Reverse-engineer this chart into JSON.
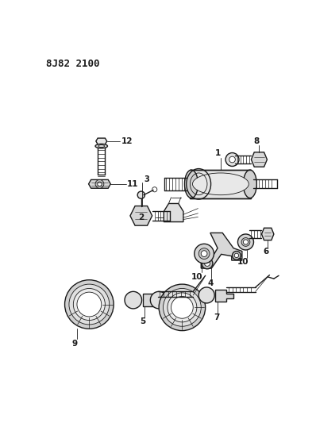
{
  "title": "8J82 2100",
  "background_color": "#ffffff",
  "line_color": "#1a1a1a",
  "figsize": [
    3.98,
    5.33
  ],
  "dpi": 100
}
